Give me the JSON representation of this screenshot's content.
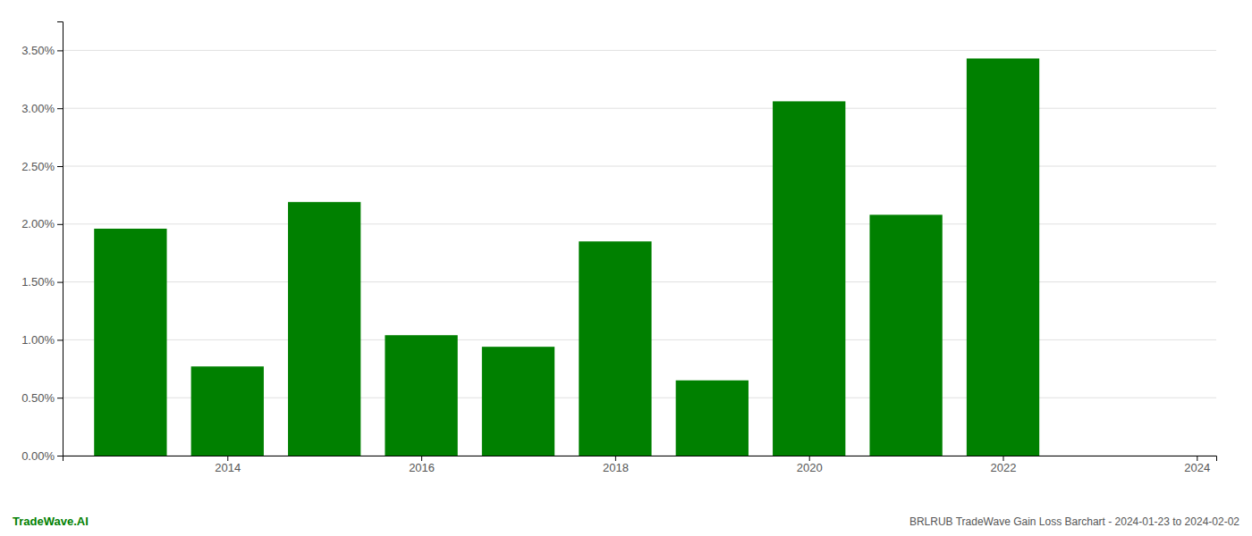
{
  "chart_data": {
    "type": "bar",
    "title": "BRLRUB TradeWave Gain Loss Barchart - 2024-01-23 to 2024-02-02",
    "annotations": [
      "TradeWave.AI"
    ],
    "x": [
      2013,
      2014,
      2015,
      2016,
      2017,
      2018,
      2019,
      2020,
      2021,
      2022,
      2023
    ],
    "values": [
      0.0196,
      0.0077,
      0.0219,
      0.0104,
      0.0094,
      0.0185,
      0.0065,
      0.0306,
      0.0208,
      0.0343,
      0.0
    ],
    "color": "#008000",
    "xlim": [
      2012.3,
      2024.2
    ],
    "xticks": [
      2014,
      2016,
      2018,
      2020,
      2022,
      2024
    ],
    "ylim": [
      0,
      0.0375
    ],
    "yticks": [
      {
        "value": 0.0,
        "label": "0.00%"
      },
      {
        "value": 0.005,
        "label": "0.50%"
      },
      {
        "value": 0.01,
        "label": "1.00%"
      },
      {
        "value": 0.015,
        "label": "1.50%"
      },
      {
        "value": 0.02,
        "label": "2.00%"
      },
      {
        "value": 0.025,
        "label": "2.50%"
      },
      {
        "value": 0.03,
        "label": "3.00%"
      },
      {
        "value": 0.035,
        "label": "3.50%"
      }
    ],
    "grid": true
  }
}
